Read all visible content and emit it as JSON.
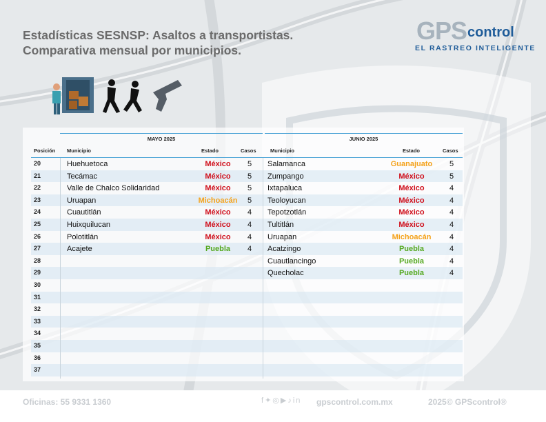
{
  "title_line1": "Estadísticas SESNSP: Asaltos a transportistas.",
  "title_line2": "Comparativa mensual por municipios.",
  "logo": {
    "gps": "GPS",
    "control": "control",
    "tagline": "EL RASTREO INTELIGENTE"
  },
  "colors": {
    "red": "#d0101c",
    "orange": "#f4a21b",
    "green": "#54a81f",
    "accent": "#4aa3d6"
  },
  "table": {
    "may_header": "MAYO 2025",
    "june_header": "JUNIO 2025",
    "col_pos": "Posición",
    "col_mun": "Municipio",
    "col_est": "Estado",
    "col_cas": "Casos",
    "rows": [
      {
        "pos": "20",
        "m_mun": "Huehuetoca",
        "m_est": "México",
        "m_c": "red",
        "m_cas": "5",
        "j_mun": "Salamanca",
        "j_est": "Guanajuato",
        "j_c": "orange",
        "j_cas": "5"
      },
      {
        "pos": "21",
        "m_mun": "Tecámac",
        "m_est": "México",
        "m_c": "red",
        "m_cas": "5",
        "j_mun": "Zumpango",
        "j_est": "México",
        "j_c": "red",
        "j_cas": "5"
      },
      {
        "pos": "22",
        "m_mun": "Valle de Chalco Solidaridad",
        "m_est": "México",
        "m_c": "red",
        "m_cas": "5",
        "j_mun": "Ixtapaluca",
        "j_est": "México",
        "j_c": "red",
        "j_cas": "4"
      },
      {
        "pos": "23",
        "m_mun": "Uruapan",
        "m_est": "Michoacán",
        "m_c": "orange",
        "m_cas": "5",
        "j_mun": "Teoloyucan",
        "j_est": "México",
        "j_c": "red",
        "j_cas": "4"
      },
      {
        "pos": "24",
        "m_mun": "Cuautitlán",
        "m_est": "México",
        "m_c": "red",
        "m_cas": "4",
        "j_mun": "Tepotzotlán",
        "j_est": "México",
        "j_c": "red",
        "j_cas": "4"
      },
      {
        "pos": "25",
        "m_mun": "Huixquilucan",
        "m_est": "México",
        "m_c": "red",
        "m_cas": "4",
        "j_mun": "Tultitlán",
        "j_est": "México",
        "j_c": "red",
        "j_cas": "4"
      },
      {
        "pos": "26",
        "m_mun": "Polotitlán",
        "m_est": "México",
        "m_c": "red",
        "m_cas": "4",
        "j_mun": "Uruapan",
        "j_est": "Michoacán",
        "j_c": "orange",
        "j_cas": "4"
      },
      {
        "pos": "27",
        "m_mun": "Acajete",
        "m_est": "Puebla",
        "m_c": "green",
        "m_cas": "4",
        "j_mun": "Acatzingo",
        "j_est": "Puebla",
        "j_c": "green",
        "j_cas": "4"
      },
      {
        "pos": "28",
        "m_mun": "",
        "m_est": "",
        "m_c": "red",
        "m_cas": "",
        "j_mun": "Cuautlancingo",
        "j_est": "Puebla",
        "j_c": "green",
        "j_cas": "4"
      },
      {
        "pos": "29",
        "m_mun": "",
        "m_est": "",
        "m_c": "red",
        "m_cas": "",
        "j_mun": "Quecholac",
        "j_est": "Puebla",
        "j_c": "green",
        "j_cas": "4"
      },
      {
        "pos": "30",
        "m_mun": "",
        "m_est": "",
        "m_c": "red",
        "m_cas": "",
        "j_mun": "",
        "j_est": "",
        "j_c": "red",
        "j_cas": ""
      },
      {
        "pos": "31",
        "m_mun": "",
        "m_est": "",
        "m_c": "red",
        "m_cas": "",
        "j_mun": "",
        "j_est": "",
        "j_c": "red",
        "j_cas": ""
      },
      {
        "pos": "32",
        "m_mun": "",
        "m_est": "",
        "m_c": "red",
        "m_cas": "",
        "j_mun": "",
        "j_est": "",
        "j_c": "red",
        "j_cas": ""
      },
      {
        "pos": "33",
        "m_mun": "",
        "m_est": "",
        "m_c": "red",
        "m_cas": "",
        "j_mun": "",
        "j_est": "",
        "j_c": "red",
        "j_cas": ""
      },
      {
        "pos": "34",
        "m_mun": "",
        "m_est": "",
        "m_c": "red",
        "m_cas": "",
        "j_mun": "",
        "j_est": "",
        "j_c": "red",
        "j_cas": ""
      },
      {
        "pos": "35",
        "m_mun": "",
        "m_est": "",
        "m_c": "red",
        "m_cas": "",
        "j_mun": "",
        "j_est": "",
        "j_c": "red",
        "j_cas": ""
      },
      {
        "pos": "36",
        "m_mun": "",
        "m_est": "",
        "m_c": "red",
        "m_cas": "",
        "j_mun": "",
        "j_est": "",
        "j_c": "red",
        "j_cas": ""
      },
      {
        "pos": "37",
        "m_mun": "",
        "m_est": "",
        "m_c": "red",
        "m_cas": "",
        "j_mun": "",
        "j_est": "",
        "j_c": "red",
        "j_cas": ""
      }
    ]
  },
  "footer": {
    "offices": "Oficinas: 55 9331 1360",
    "social_icons": [
      "facebook-icon",
      "twitter-icon",
      "instagram-icon",
      "youtube-icon",
      "tiktok-icon",
      "linkedin-icon"
    ],
    "website": "gpscontrol.com.mx",
    "copyright": "2025© GPScontrol®"
  }
}
